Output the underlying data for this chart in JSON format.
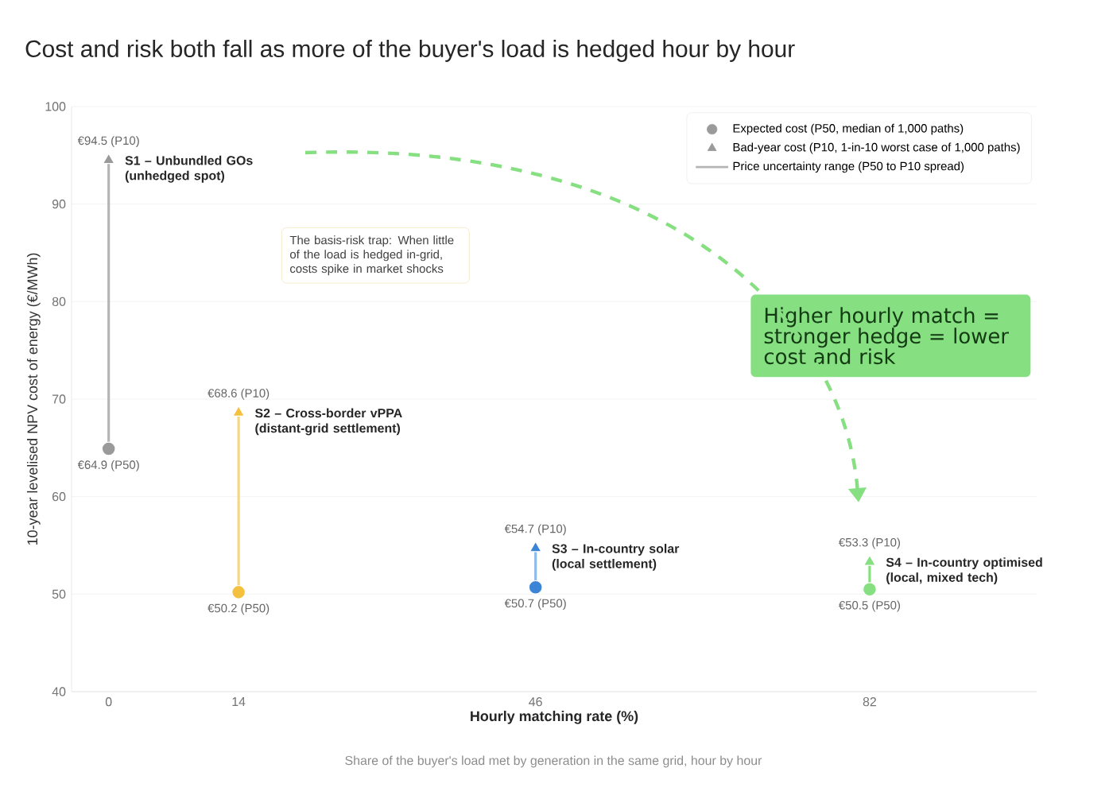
{
  "chart_data": {
    "type": "scatter",
    "title": "Cost and risk both fall as more of the buyer's load is hedged hour by hour",
    "xlabel": "Hourly matching rate (%)",
    "ylabel": "10-year levelised NPV cost of energy (€/MWh)",
    "xlim": [
      -4,
      100
    ],
    "ylim": [
      40,
      100
    ],
    "xticks": [
      0,
      14,
      46,
      82
    ],
    "yticks": [
      40,
      50,
      60,
      70,
      80,
      90,
      100
    ],
    "grid": "y",
    "legend": "top right",
    "series": [
      {
        "name": "Expected cost (P50, median of 1,000 paths)",
        "marker": "circle",
        "x": [
          0,
          14,
          46,
          82
        ],
        "values": [
          64.9,
          50.2,
          50.7,
          50.5
        ],
        "colors": [
          "#9a9a9a",
          "#f4c13f",
          "#3c84d6",
          "#86df80"
        ],
        "value_labels": [
          "€64.9 (P50)",
          "€50.2 (P50)",
          "€50.7 (P50)",
          "€50.5 (P50)"
        ]
      },
      {
        "name": "Bad-year cost (P10, 1-in-10 worst case of 1,000 paths)",
        "marker": "triangle",
        "x": [
          0,
          14,
          46,
          82
        ],
        "values": [
          94.5,
          68.6,
          54.7,
          53.3
        ],
        "colors": [
          "#9a9a9a",
          "#f4c13f",
          "#3c84d6",
          "#86df80"
        ],
        "value_labels": [
          "€94.5 (P10)",
          "€68.6 (P10)",
          "€54.7 (P10)",
          "€53.3 (P10)"
        ]
      },
      {
        "name": "Price uncertainty range (P50 to P10 spread)",
        "type": "line",
        "color": "#b5b5b5",
        "x": [
          0,
          0
        ],
        "values": [
          64.9,
          94.5
        ]
      },
      {
        "type": "line",
        "color": "#f7d77e",
        "x": [
          14,
          14
        ],
        "values": [
          50.2,
          68.6
        ]
      },
      {
        "type": "line",
        "color": "#8fbbea",
        "x": [
          46,
          46
        ],
        "values": [
          50.7,
          54.7
        ]
      },
      {
        "type": "line",
        "color": "#86df80",
        "x": [
          82,
          82
        ],
        "values": [
          50.5,
          53.3
        ]
      }
    ],
    "annotations": [
      {
        "text": "S1 – Unbundled GOs (unhedged spot)",
        "x": 0,
        "y": 94.5
      },
      {
        "text": "S2 – Cross-border vPPA (distant-grid settlement)",
        "x": 14,
        "y": 68.6
      },
      {
        "text": "S3 – In-country solar (local settlement)",
        "x": 46,
        "y": 54.7
      },
      {
        "text": "S4 – In-country optimised (local, mixed tech)",
        "x": 82,
        "y": 53.3
      },
      "The basis-risk trap: When little of the load is hedged in-grid, costs spike in market shocks",
      "Higher hourly match = stronger hedge = lower cost and risk",
      "Share of the buyer's load met by generation in the same grid, hour by hour"
    ]
  }
}
